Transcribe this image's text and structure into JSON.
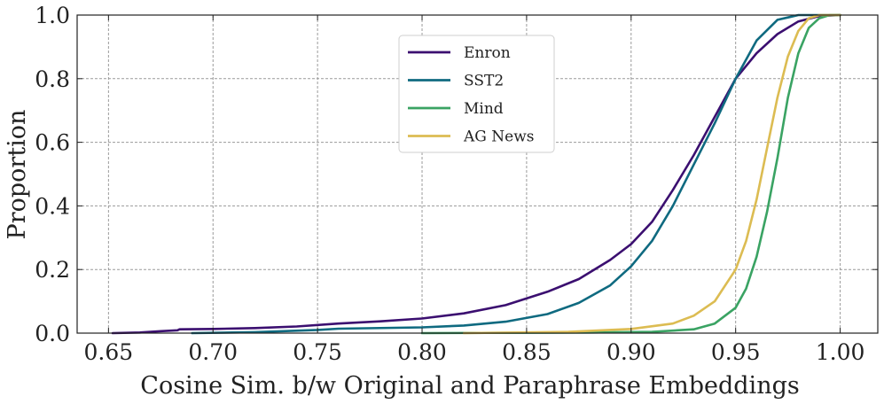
{
  "chart_data": {
    "type": "line",
    "title": "",
    "xlabel": "Cosine Sim. b/w Original and Paraphrase Embeddings",
    "ylabel": "Proportion",
    "xlim": [
      0.635,
      1.018
    ],
    "ylim": [
      0.0,
      1.0
    ],
    "grid": true,
    "legend_position": "top-center",
    "x_ticks": [
      0.65,
      0.7,
      0.75,
      0.8,
      0.85,
      0.9,
      0.95,
      1.0
    ],
    "x_tick_labels": [
      "0.65",
      "0.70",
      "0.75",
      "0.80",
      "0.85",
      "0.90",
      "0.95",
      "1.00"
    ],
    "y_ticks": [
      0.0,
      0.2,
      0.4,
      0.6,
      0.8,
      1.0
    ],
    "y_tick_labels": [
      "0.0",
      "0.2",
      "0.4",
      "0.6",
      "0.8",
      "1.0"
    ],
    "series": [
      {
        "name": "Enron",
        "color": "#3b0f70",
        "points": [
          [
            0.652,
            0.0
          ],
          [
            0.665,
            0.002
          ],
          [
            0.675,
            0.006
          ],
          [
            0.683,
            0.009
          ],
          [
            0.684,
            0.012
          ],
          [
            0.7,
            0.013
          ],
          [
            0.72,
            0.016
          ],
          [
            0.74,
            0.021
          ],
          [
            0.76,
            0.03
          ],
          [
            0.78,
            0.037
          ],
          [
            0.8,
            0.046
          ],
          [
            0.82,
            0.062
          ],
          [
            0.84,
            0.088
          ],
          [
            0.86,
            0.13
          ],
          [
            0.875,
            0.17
          ],
          [
            0.89,
            0.23
          ],
          [
            0.9,
            0.28
          ],
          [
            0.91,
            0.35
          ],
          [
            0.92,
            0.45
          ],
          [
            0.93,
            0.56
          ],
          [
            0.94,
            0.68
          ],
          [
            0.95,
            0.8
          ],
          [
            0.96,
            0.88
          ],
          [
            0.97,
            0.94
          ],
          [
            0.98,
            0.98
          ],
          [
            0.99,
            0.997
          ],
          [
            1.0,
            1.0
          ]
        ]
      },
      {
        "name": "SST2",
        "color": "#0f6a80",
        "points": [
          [
            0.69,
            0.0
          ],
          [
            0.72,
            0.003
          ],
          [
            0.75,
            0.01
          ],
          [
            0.76,
            0.014
          ],
          [
            0.8,
            0.018
          ],
          [
            0.82,
            0.024
          ],
          [
            0.84,
            0.036
          ],
          [
            0.86,
            0.06
          ],
          [
            0.875,
            0.095
          ],
          [
            0.89,
            0.15
          ],
          [
            0.9,
            0.21
          ],
          [
            0.91,
            0.29
          ],
          [
            0.92,
            0.4
          ],
          [
            0.93,
            0.53
          ],
          [
            0.94,
            0.66
          ],
          [
            0.95,
            0.8
          ],
          [
            0.96,
            0.92
          ],
          [
            0.97,
            0.985
          ],
          [
            0.98,
            1.0
          ],
          [
            1.0,
            1.0
          ]
        ]
      },
      {
        "name": "Mind",
        "color": "#3aa363",
        "points": [
          [
            0.8,
            0.0
          ],
          [
            0.88,
            0.002
          ],
          [
            0.91,
            0.004
          ],
          [
            0.93,
            0.012
          ],
          [
            0.94,
            0.03
          ],
          [
            0.95,
            0.08
          ],
          [
            0.955,
            0.14
          ],
          [
            0.96,
            0.24
          ],
          [
            0.965,
            0.38
          ],
          [
            0.97,
            0.55
          ],
          [
            0.975,
            0.74
          ],
          [
            0.98,
            0.88
          ],
          [
            0.985,
            0.96
          ],
          [
            0.99,
            0.99
          ],
          [
            0.995,
            1.0
          ],
          [
            1.0,
            1.0
          ]
        ]
      },
      {
        "name": "AG News",
        "color": "#dcbc52",
        "points": [
          [
            0.82,
            0.0
          ],
          [
            0.87,
            0.004
          ],
          [
            0.9,
            0.013
          ],
          [
            0.92,
            0.03
          ],
          [
            0.93,
            0.055
          ],
          [
            0.94,
            0.1
          ],
          [
            0.95,
            0.2
          ],
          [
            0.955,
            0.29
          ],
          [
            0.96,
            0.42
          ],
          [
            0.965,
            0.58
          ],
          [
            0.97,
            0.74
          ],
          [
            0.975,
            0.87
          ],
          [
            0.98,
            0.95
          ],
          [
            0.985,
            0.99
          ],
          [
            0.99,
            1.0
          ],
          [
            1.0,
            1.0
          ]
        ]
      }
    ]
  }
}
